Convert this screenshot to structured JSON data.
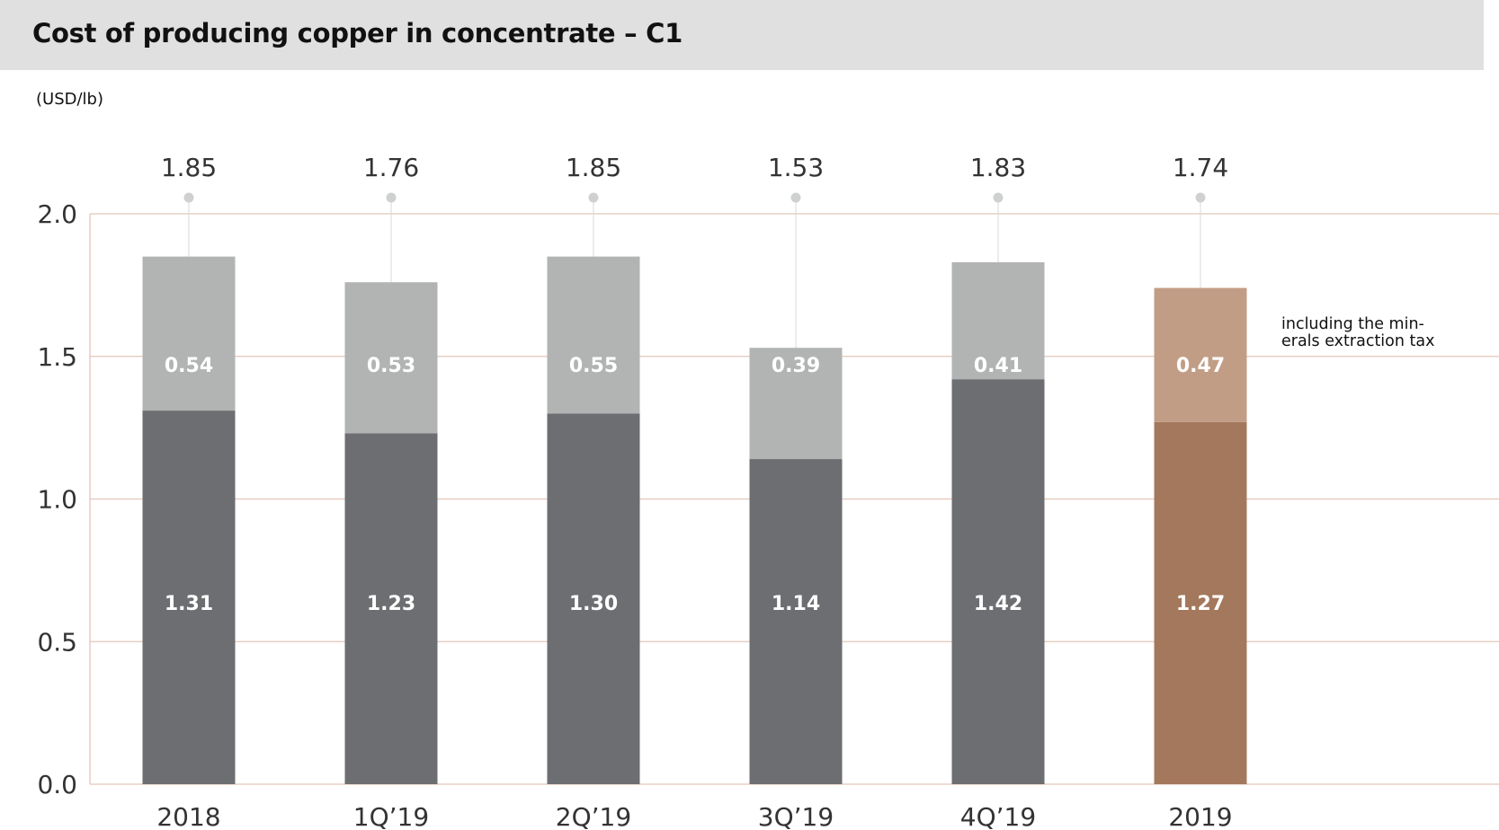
{
  "title": "Cost of producing copper in concentrate – C1",
  "unit_label": "(USD/lb)",
  "note_lines": [
    "including the min-",
    "erals extraction tax"
  ],
  "colors": {
    "base_gray": "#6d6e71",
    "top_gray": "#b2b4b4",
    "base_brown": "#a4785c",
    "top_brown": "#c19d85",
    "gridline": "#e2c6b8",
    "marker": "#cfd0d0"
  },
  "chart_data": {
    "type": "bar",
    "stacked": true,
    "categories": [
      "2018",
      "1Q’19",
      "2Q’19",
      "3Q’19",
      "4Q’19",
      "2019"
    ],
    "series": [
      {
        "values": [
          1.31,
          1.23,
          1.3,
          1.14,
          1.42,
          1.27
        ]
      },
      {
        "values": [
          0.54,
          0.53,
          0.55,
          0.39,
          0.41,
          0.47
        ]
      }
    ],
    "totals": [
      "1.85",
      "1.76",
      "1.85",
      "1.53",
      "1.83",
      "1.74"
    ],
    "bottom_labels": [
      "1.31",
      "1.23",
      "1.30",
      "1.14",
      "1.42",
      "1.27"
    ],
    "top_labels": [
      "0.54",
      "0.53",
      "0.55",
      "0.39",
      "0.41",
      "0.47"
    ],
    "highlight_index": 5,
    "ylim": [
      0,
      2.0
    ],
    "yticks": [
      {
        "value": 0,
        "label": "0.0"
      },
      {
        "value": 0.5,
        "label": "0.5"
      },
      {
        "value": 1.0,
        "label": "1.0"
      },
      {
        "value": 1.5,
        "label": "1.5"
      },
      {
        "value": 2.0,
        "label": "2.0"
      }
    ],
    "grid": true,
    "xlabel": "",
    "ylabel": ""
  }
}
